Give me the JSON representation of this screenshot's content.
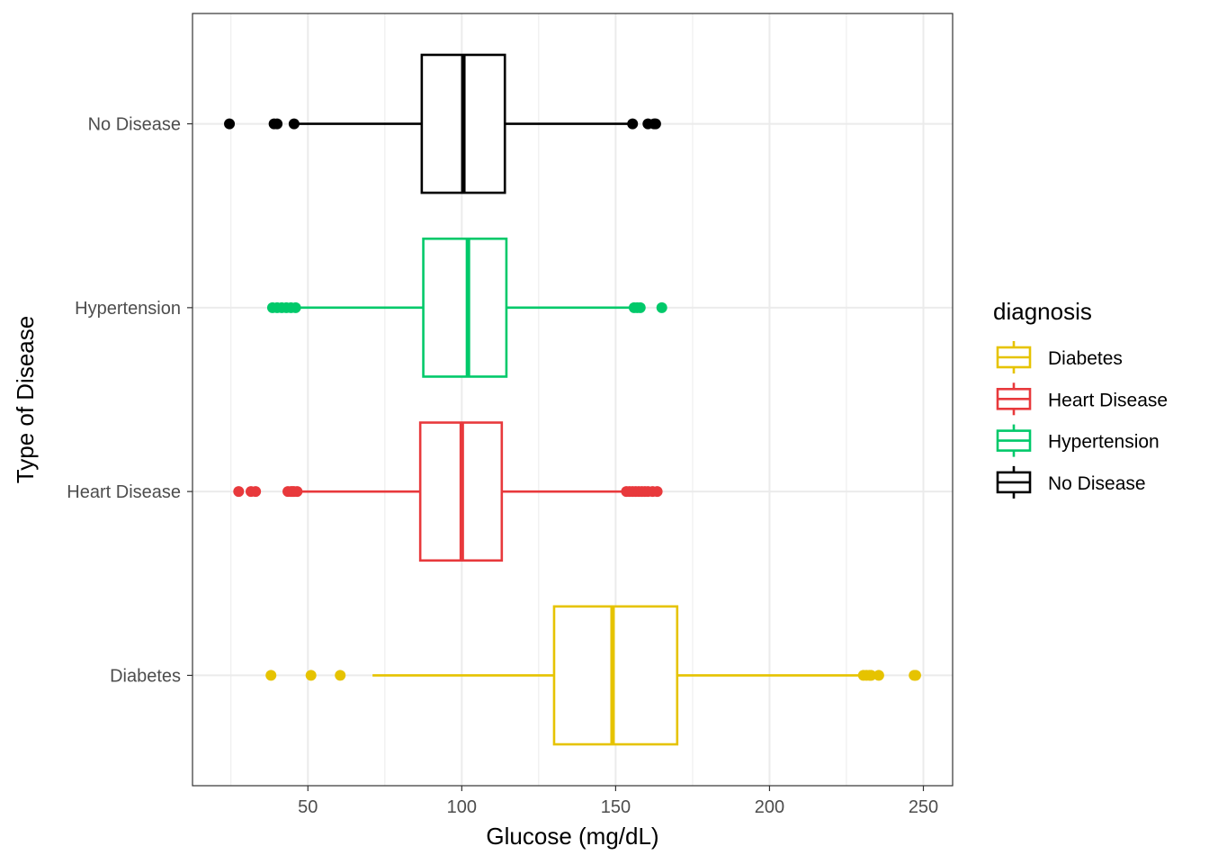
{
  "chart_data": {
    "type": "boxplot",
    "orientation": "horizontal",
    "title": "",
    "xlabel": "Glucose (mg/dL)",
    "ylabel": "Type of Disease",
    "xlim": [
      12.5,
      259.5
    ],
    "x_ticks": [
      50,
      100,
      150,
      200,
      250
    ],
    "grid": true,
    "legend": {
      "title": "diagnosis",
      "position": "right"
    },
    "categories": [
      "Diabetes",
      "Heart Disease",
      "Hypertension",
      "No Disease"
    ],
    "series": [
      {
        "name": "Diabetes",
        "color": "#E6C300",
        "q1": 130,
        "median": 149,
        "q3": 170,
        "whisker_low": 71,
        "whisker_high": 230,
        "outliers": [
          38,
          51,
          60.5,
          230.5,
          231.5,
          232.5,
          233,
          235.5,
          247,
          247.5
        ]
      },
      {
        "name": "Heart Disease",
        "color": "#E8393C",
        "q1": 86.5,
        "median": 100,
        "q3": 113,
        "whisker_low": 47,
        "whisker_high": 153,
        "outliers": [
          27.5,
          31.5,
          33,
          43.5,
          44.5,
          45,
          45.5,
          46.5,
          153.5,
          154.5,
          155.5,
          156.5,
          157.5,
          158.5,
          159.5,
          160.5,
          162,
          163.5
        ]
      },
      {
        "name": "Hypertension",
        "color": "#00C96A",
        "q1": 87.5,
        "median": 102,
        "q3": 114.5,
        "whisker_low": 47,
        "whisker_high": 155.5,
        "outliers": [
          38.5,
          40,
          41.5,
          43,
          44.5,
          46,
          156,
          157,
          158,
          165
        ]
      },
      {
        "name": "No Disease",
        "color": "#000000",
        "q1": 87,
        "median": 100.5,
        "q3": 114,
        "whisker_low": 46,
        "whisker_high": 155,
        "outliers": [
          24.5,
          39,
          40,
          45.5,
          155.5,
          160.5,
          162.5,
          163
        ]
      }
    ]
  }
}
